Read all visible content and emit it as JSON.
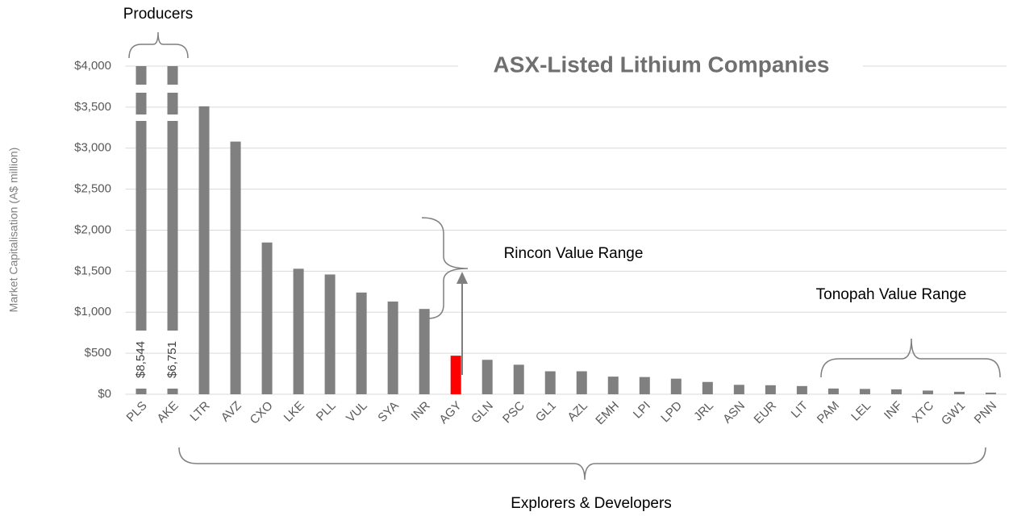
{
  "chart_data": {
    "type": "bar",
    "title": "ASX-Listed Lithium Companies",
    "y_label": "Market Capitalisation (A$ million)",
    "categories": [
      "PLS",
      "AKE",
      "LTR",
      "AVZ",
      "CXO",
      "LKE",
      "PLL",
      "VUL",
      "SYA",
      "INR",
      "AGY",
      "GLN",
      "PSC",
      "GL1",
      "AZL",
      "EMH",
      "LPI",
      "LPD",
      "JRL",
      "ASN",
      "EUR",
      "LIT",
      "PAM",
      "LEL",
      "INF",
      "XTC",
      "GW1",
      "PNN"
    ],
    "values": [
      8544,
      6751,
      3510,
      3080,
      1850,
      1530,
      1460,
      1240,
      1130,
      1040,
      470,
      420,
      360,
      280,
      280,
      215,
      210,
      190,
      150,
      115,
      110,
      100,
      70,
      65,
      60,
      45,
      30,
      20
    ],
    "value_labels": [
      "$8,544",
      "$6,751",
      null,
      null,
      null,
      null,
      null,
      null,
      null,
      null,
      null,
      null,
      null,
      null,
      null,
      null,
      null,
      null,
      null,
      null,
      null,
      null,
      null,
      null,
      null,
      null,
      null,
      null
    ],
    "colors": [
      "#808080",
      "#808080",
      "#808080",
      "#808080",
      "#808080",
      "#808080",
      "#808080",
      "#808080",
      "#808080",
      "#808080",
      "#ff0000",
      "#808080",
      "#808080",
      "#808080",
      "#808080",
      "#808080",
      "#808080",
      "#808080",
      "#808080",
      "#808080",
      "#808080",
      "#808080",
      "#808080",
      "#808080",
      "#808080",
      "#808080",
      "#808080",
      "#808080"
    ],
    "ylim": [
      0,
      4000
    ],
    "yticks": [
      {
        "value": 0,
        "label": "$0"
      },
      {
        "value": 500,
        "label": "$500"
      },
      {
        "value": 1000,
        "label": "$1,000"
      },
      {
        "value": 1500,
        "label": "$1,500"
      },
      {
        "value": 2000,
        "label": "$2,000"
      },
      {
        "value": 2500,
        "label": "$2,500"
      },
      {
        "value": 3000,
        "label": "$3,000"
      },
      {
        "value": 3500,
        "label": "$3,500"
      },
      {
        "value": 4000,
        "label": "$4,000"
      }
    ],
    "grid": true,
    "annotations": [
      "Producers",
      "Rincon Value Range",
      "Tonopah Value Range",
      "Explorers & Developers"
    ]
  }
}
